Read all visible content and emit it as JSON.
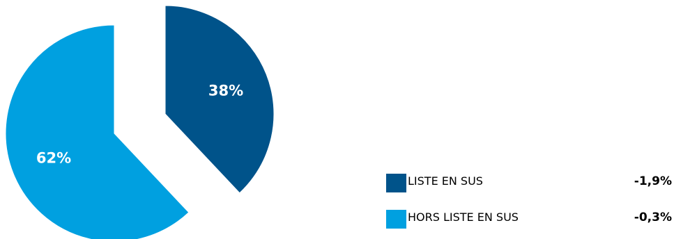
{
  "chart_data": {
    "type": "pie",
    "slices": [
      {
        "name": "LISTE EN SUS",
        "value": 38,
        "label": "38%",
        "change": "-1,9%",
        "color": "#00538A",
        "exploded": true
      },
      {
        "name": "HORS LISTE EN SUS",
        "value": 62,
        "label": "62%",
        "change": "-0,3%",
        "color": "#00A0E0",
        "exploded": true
      }
    ],
    "start_angle_deg": 0,
    "direction": "clockwise",
    "legend_position": "bottom-right",
    "title": ""
  }
}
